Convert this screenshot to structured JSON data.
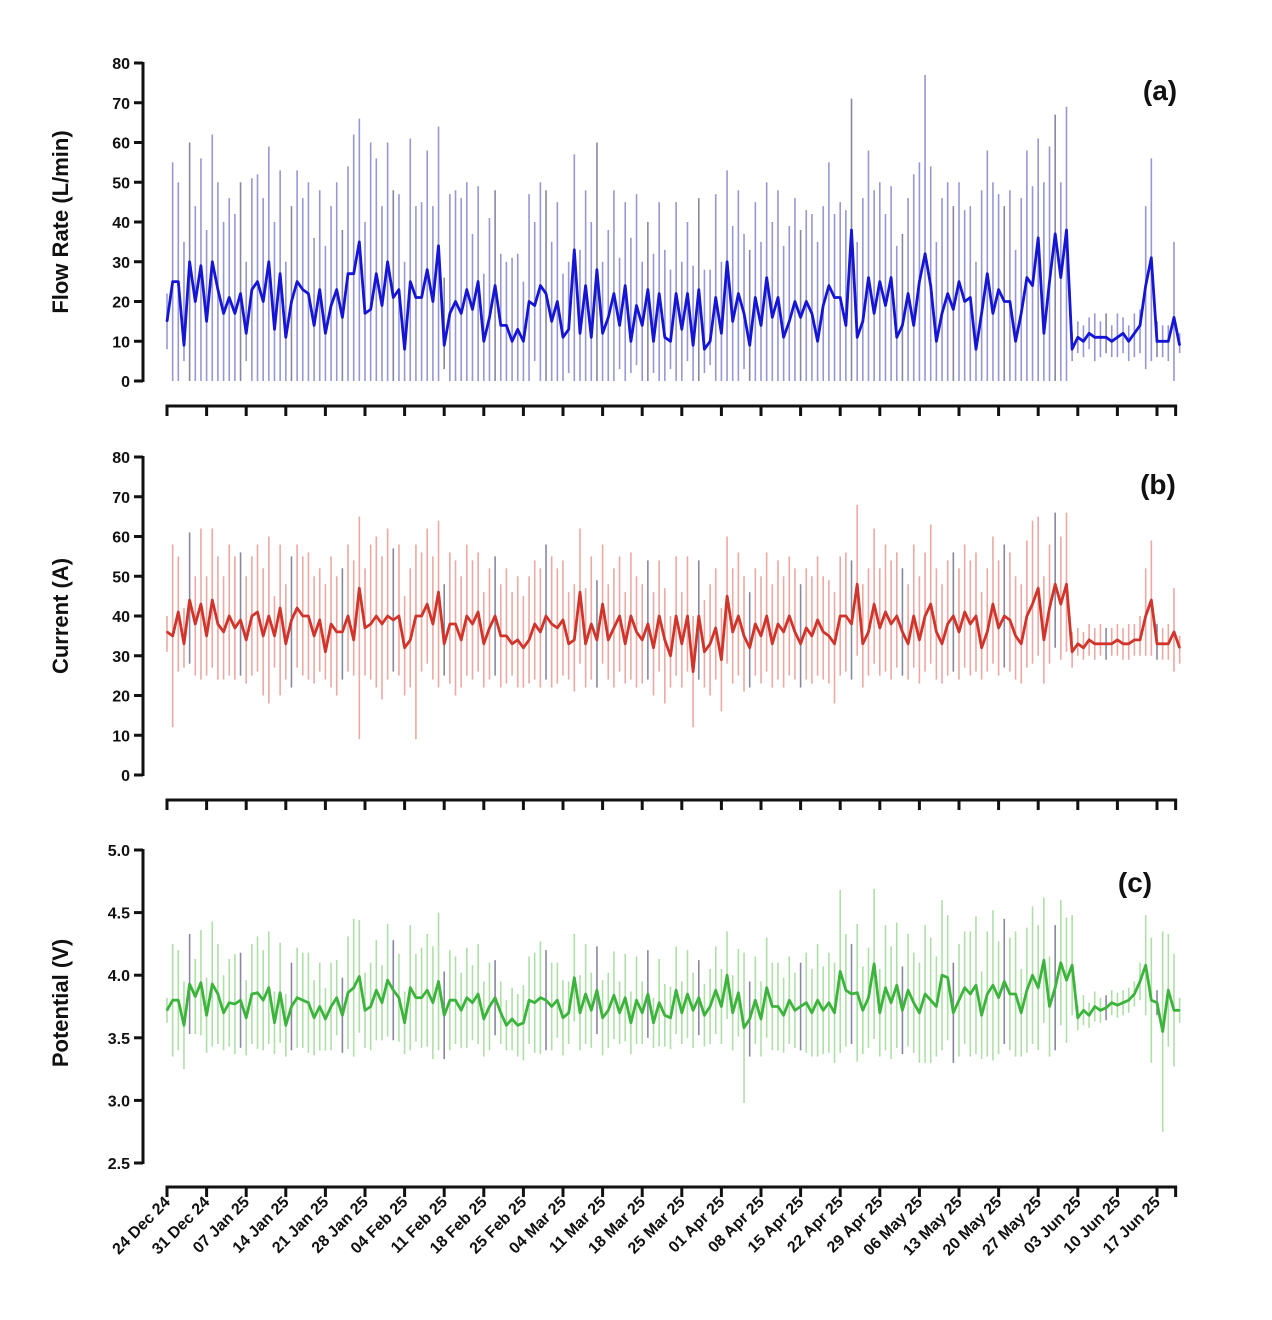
{
  "chart_data": [
    {
      "type": "line",
      "panel_label": "(a)",
      "ylabel": "Flow Rate (L/min)",
      "ylim": [
        0,
        80
      ],
      "yticks": [
        "0",
        "10",
        "20",
        "30",
        "40",
        "50",
        "60",
        "70",
        "80"
      ],
      "color": "#1515d6",
      "whisker_color": "#8c8cd0",
      "mean": [
        15,
        25,
        25,
        9,
        30,
        20,
        29,
        15,
        30,
        23,
        17,
        21,
        17,
        22,
        12,
        23,
        25,
        20,
        30,
        13,
        27,
        11,
        20,
        25,
        23,
        22,
        14,
        23,
        12,
        19,
        23,
        16,
        27,
        27,
        35,
        17,
        18,
        27,
        19,
        30,
        21,
        23,
        8,
        25,
        21,
        21,
        28,
        20,
        34,
        9,
        17,
        20,
        17,
        23,
        18,
        25,
        10,
        16,
        24,
        14,
        14,
        10,
        13,
        10,
        20,
        19,
        24,
        22,
        15,
        20,
        11,
        13,
        33,
        12,
        24,
        11,
        28,
        12,
        16,
        22,
        14,
        24,
        10,
        19,
        14,
        23,
        10,
        22,
        11,
        10,
        22,
        13,
        22,
        9,
        23,
        8,
        10,
        21,
        12,
        30,
        15,
        22,
        17,
        9,
        21,
        14,
        26,
        16,
        21,
        11,
        15,
        20,
        16,
        20,
        17,
        10,
        19,
        24,
        21,
        21,
        14,
        38,
        11,
        15,
        26,
        17,
        25,
        19,
        26,
        11,
        14,
        22,
        14,
        25,
        32,
        24,
        10,
        17,
        22,
        18,
        25,
        20,
        21,
        8,
        17,
        27,
        17,
        23,
        20,
        20,
        10,
        17,
        26,
        24,
        36,
        12,
        25,
        37,
        26,
        38,
        8,
        11,
        10,
        12,
        11,
        11,
        11,
        10,
        11,
        12,
        10,
        12,
        14,
        24,
        31,
        10,
        10,
        10,
        16,
        9
      ],
      "high": [
        22,
        55,
        50,
        35,
        60,
        44,
        56,
        38,
        62,
        50,
        40,
        46,
        42,
        50,
        30,
        51,
        52,
        46,
        59,
        40,
        53,
        30,
        44,
        53,
        46,
        50,
        36,
        48,
        34,
        44,
        50,
        38,
        54,
        62,
        66,
        40,
        60,
        56,
        44,
        60,
        48,
        47,
        30,
        61,
        44,
        45,
        58,
        44,
        64,
        26,
        47,
        48,
        46,
        50,
        37,
        49,
        27,
        41,
        48,
        32,
        30,
        31,
        32,
        25,
        47,
        40,
        50,
        48,
        35,
        45,
        27,
        30,
        57,
        33,
        48,
        40,
        60,
        30,
        38,
        48,
        31,
        45,
        36,
        47,
        30,
        40,
        32,
        45,
        33,
        28,
        45,
        30,
        40,
        29,
        46,
        28,
        28,
        47,
        30,
        53,
        39,
        48,
        37,
        33,
        45,
        35,
        50,
        40,
        48,
        34,
        39,
        46,
        38,
        43,
        42,
        35,
        44,
        55,
        42,
        45,
        43,
        71,
        35,
        46,
        58,
        48,
        50,
        42,
        49,
        34,
        37,
        46,
        52,
        55,
        77,
        54,
        35,
        46,
        50,
        44,
        50,
        43,
        44,
        30,
        48,
        58,
        50,
        47,
        44,
        48,
        33,
        46,
        58,
        49,
        61,
        50,
        59,
        67,
        50,
        69,
        12,
        15,
        14,
        16,
        17,
        15,
        17,
        14,
        17,
        16,
        14,
        17,
        18,
        44,
        56,
        15,
        14,
        14,
        35,
        12
      ],
      "low": [
        8,
        0,
        0,
        5,
        0,
        0,
        0,
        0,
        0,
        0,
        0,
        0,
        0,
        0,
        5,
        0,
        0,
        0,
        0,
        0,
        0,
        0,
        0,
        0,
        0,
        0,
        0,
        0,
        0,
        0,
        0,
        0,
        0,
        0,
        0,
        0,
        0,
        0,
        0,
        0,
        0,
        0,
        0,
        0,
        0,
        0,
        0,
        0,
        0,
        3,
        0,
        0,
        0,
        0,
        0,
        0,
        0,
        0,
        0,
        0,
        0,
        0,
        0,
        0,
        0,
        5,
        0,
        0,
        0,
        0,
        0,
        2,
        0,
        0,
        0,
        0,
        0,
        0,
        0,
        0,
        3,
        0,
        2,
        4,
        0,
        0,
        2,
        0,
        0,
        3,
        0,
        0,
        5,
        0,
        0,
        2,
        4,
        0,
        0,
        0,
        0,
        0,
        3,
        0,
        0,
        0,
        0,
        0,
        0,
        0,
        0,
        0,
        0,
        0,
        0,
        0,
        0,
        0,
        0,
        0,
        0,
        0,
        0,
        0,
        0,
        0,
        0,
        0,
        0,
        0,
        0,
        0,
        0,
        0,
        0,
        0,
        0,
        0,
        0,
        0,
        0,
        0,
        0,
        0,
        0,
        0,
        0,
        0,
        0,
        0,
        0,
        0,
        0,
        0,
        0,
        0,
        0,
        0,
        0,
        0,
        5,
        7,
        6,
        8,
        5,
        6,
        7,
        6,
        6,
        7,
        5,
        6,
        7,
        3,
        5,
        6,
        6,
        5,
        0,
        7
      ]
    },
    {
      "type": "line",
      "panel_label": "(b)",
      "ylabel": "Current (A)",
      "ylim": [
        0,
        80
      ],
      "yticks": [
        "0",
        "10",
        "20",
        "30",
        "40",
        "50",
        "60",
        "70",
        "80"
      ],
      "color": "#d0342a",
      "whisker_color": "#e8a098",
      "mean": [
        36,
        35,
        41,
        33,
        44,
        38,
        43,
        35,
        44,
        38,
        36,
        40,
        37,
        39,
        34,
        40,
        41,
        35,
        40,
        35,
        42,
        33,
        39,
        42,
        40,
        40,
        35,
        39,
        31,
        38,
        36,
        36,
        40,
        34,
        47,
        37,
        38,
        40,
        38,
        40,
        39,
        40,
        32,
        34,
        40,
        40,
        43,
        38,
        46,
        33,
        38,
        38,
        34,
        40,
        38,
        41,
        33,
        37,
        40,
        35,
        35,
        33,
        34,
        32,
        34,
        38,
        36,
        40,
        38,
        37,
        39,
        33,
        34,
        46,
        33,
        38,
        34,
        43,
        34,
        37,
        40,
        33,
        40,
        36,
        34,
        38,
        32,
        40,
        34,
        30,
        40,
        33,
        40,
        26,
        40,
        31,
        33,
        37,
        29,
        45,
        36,
        40,
        35,
        32,
        38,
        35,
        40,
        33,
        38,
        36,
        40,
        36,
        33,
        37,
        35,
        39,
        36,
        35,
        33,
        40,
        40,
        38,
        48,
        33,
        36,
        43,
        37,
        41,
        38,
        40,
        36,
        33,
        40,
        34,
        40,
        43,
        36,
        33,
        38,
        40,
        36,
        41,
        38,
        40,
        32,
        36,
        43,
        37,
        40,
        39,
        35,
        33,
        40,
        43,
        47,
        34,
        42,
        48,
        43,
        48,
        31,
        33,
        32,
        34,
        33,
        33,
        33,
        33,
        34,
        33,
        33,
        34,
        34,
        40,
        44,
        33,
        33,
        33,
        36,
        32
      ],
      "high": [
        40,
        58,
        55,
        42,
        61,
        50,
        62,
        50,
        62,
        55,
        50,
        58,
        55,
        56,
        50,
        55,
        58,
        52,
        60,
        45,
        58,
        48,
        55,
        58,
        55,
        56,
        50,
        52,
        48,
        55,
        50,
        52,
        58,
        54,
        65,
        52,
        58,
        60,
        55,
        62,
        57,
        58,
        45,
        52,
        58,
        56,
        62,
        55,
        64,
        48,
        56,
        54,
        50,
        58,
        54,
        56,
        46,
        52,
        55,
        48,
        52,
        46,
        50,
        45,
        50,
        54,
        52,
        58,
        55,
        52,
        54,
        46,
        48,
        62,
        47,
        55,
        49,
        58,
        48,
        52,
        55,
        46,
        56,
        50,
        48,
        54,
        46,
        54,
        47,
        40,
        55,
        46,
        55,
        40,
        54,
        44,
        48,
        52,
        42,
        60,
        52,
        56,
        50,
        46,
        52,
        50,
        56,
        48,
        54,
        50,
        55,
        52,
        48,
        52,
        50,
        55,
        50,
        49,
        46,
        55,
        56,
        54,
        68,
        48,
        52,
        62,
        52,
        58,
        54,
        56,
        52,
        48,
        58,
        50,
        56,
        63,
        52,
        48,
        54,
        56,
        52,
        58,
        54,
        56,
        46,
        52,
        60,
        54,
        58,
        56,
        50,
        48,
        59,
        64,
        65,
        50,
        58,
        66,
        60,
        66,
        36,
        37,
        36,
        38,
        37,
        38,
        37,
        37,
        38,
        37,
        38,
        38,
        40,
        52,
        59,
        38,
        37,
        38,
        47,
        35
      ],
      "low": [
        31,
        12,
        26,
        27,
        28,
        25,
        24,
        25,
        27,
        24,
        24,
        25,
        24,
        25,
        23,
        25,
        26,
        20,
        18,
        27,
        20,
        24,
        22,
        27,
        25,
        24,
        23,
        26,
        24,
        22,
        20,
        24,
        26,
        25,
        9,
        25,
        24,
        22,
        19,
        24,
        26,
        25,
        20,
        22,
        9,
        26,
        28,
        24,
        22,
        25,
        23,
        20,
        22,
        25,
        24,
        26,
        22,
        24,
        25,
        22,
        23,
        25,
        22,
        22,
        23,
        24,
        22,
        24,
        22,
        23,
        25,
        24,
        21,
        28,
        22,
        24,
        22,
        28,
        24,
        22,
        26,
        23,
        24,
        22,
        23,
        24,
        20,
        26,
        18,
        22,
        25,
        22,
        26,
        12,
        24,
        22,
        20,
        24,
        16,
        28,
        23,
        25,
        21,
        22,
        25,
        23,
        26,
        22,
        24,
        22,
        25,
        24,
        22,
        24,
        23,
        25,
        24,
        23,
        18,
        25,
        26,
        24,
        30,
        22,
        25,
        28,
        25,
        26,
        24,
        27,
        25,
        24,
        27,
        23,
        26,
        28,
        24,
        23,
        25,
        26,
        24,
        27,
        25,
        26,
        24,
        26,
        28,
        25,
        27,
        26,
        24,
        23,
        27,
        28,
        30,
        23,
        28,
        32,
        29,
        31,
        27,
        30,
        29,
        30,
        29,
        30,
        29,
        30,
        30,
        29,
        29,
        30,
        30,
        30,
        30,
        29,
        29,
        29,
        26,
        28
      ]
    },
    {
      "type": "line",
      "panel_label": "(c)",
      "ylabel": "Potential (V)",
      "ylim": [
        2.5,
        5.0
      ],
      "yticks": [
        "2.5",
        "3.0",
        "3.5",
        "4.0",
        "4.5",
        "5.0"
      ],
      "color": "#3cb43c",
      "whisker_color": "#a6dc9e",
      "mean": [
        3.72,
        3.8,
        3.8,
        3.6,
        3.93,
        3.83,
        3.94,
        3.68,
        3.93,
        3.85,
        3.7,
        3.78,
        3.77,
        3.8,
        3.66,
        3.85,
        3.86,
        3.8,
        3.9,
        3.62,
        3.86,
        3.6,
        3.75,
        3.82,
        3.8,
        3.78,
        3.66,
        3.75,
        3.65,
        3.75,
        3.82,
        3.68,
        3.86,
        3.9,
        3.99,
        3.72,
        3.75,
        3.88,
        3.78,
        3.96,
        3.88,
        3.82,
        3.62,
        3.9,
        3.82,
        3.82,
        3.88,
        3.78,
        3.95,
        3.68,
        3.8,
        3.8,
        3.72,
        3.82,
        3.78,
        3.85,
        3.65,
        3.75,
        3.82,
        3.7,
        3.6,
        3.65,
        3.6,
        3.62,
        3.8,
        3.78,
        3.82,
        3.8,
        3.75,
        3.8,
        3.66,
        3.7,
        3.98,
        3.7,
        3.85,
        3.72,
        3.88,
        3.66,
        3.72,
        3.84,
        3.7,
        3.82,
        3.62,
        3.8,
        3.7,
        3.85,
        3.62,
        3.78,
        3.68,
        3.66,
        3.88,
        3.7,
        3.85,
        3.72,
        3.82,
        3.68,
        3.75,
        3.88,
        3.75,
        4.0,
        3.7,
        3.86,
        3.58,
        3.65,
        3.8,
        3.65,
        3.9,
        3.75,
        3.75,
        3.68,
        3.8,
        3.72,
        3.75,
        3.78,
        3.7,
        3.8,
        3.72,
        3.78,
        3.7,
        4.03,
        3.88,
        3.85,
        3.86,
        3.72,
        3.82,
        4.09,
        3.7,
        3.9,
        3.78,
        3.92,
        3.72,
        3.88,
        3.78,
        3.7,
        3.85,
        3.8,
        3.75,
        4.0,
        3.98,
        3.7,
        3.8,
        3.9,
        3.85,
        3.92,
        3.68,
        3.85,
        3.92,
        3.82,
        3.95,
        3.85,
        3.85,
        3.7,
        3.88,
        4.0,
        3.9,
        4.12,
        3.75,
        3.9,
        4.1,
        3.96,
        4.08,
        3.66,
        3.72,
        3.68,
        3.75,
        3.72,
        3.74,
        3.78,
        3.76,
        3.78,
        3.8,
        3.85,
        3.95,
        4.08,
        3.8,
        3.78,
        3.55,
        3.88,
        3.72,
        3.72
      ],
      "err": [
        0.1,
        0.45,
        0.4,
        0.35,
        0.4,
        0.3,
        0.42,
        0.3,
        0.5,
        0.4,
        0.3,
        0.35,
        0.4,
        0.38,
        0.3,
        0.4,
        0.45,
        0.4,
        0.45,
        0.25,
        0.4,
        0.25,
        0.35,
        0.4,
        0.38,
        0.4,
        0.3,
        0.35,
        0.25,
        0.35,
        0.3,
        0.3,
        0.45,
        0.55,
        0.45,
        0.3,
        0.35,
        0.4,
        0.3,
        0.45,
        0.4,
        0.35,
        0.25,
        0.5,
        0.35,
        0.4,
        0.45,
        0.45,
        0.55,
        0.35,
        0.4,
        0.35,
        0.3,
        0.4,
        0.3,
        0.4,
        0.3,
        0.35,
        0.3,
        0.25,
        0.2,
        0.25,
        0.25,
        0.3,
        0.35,
        0.4,
        0.45,
        0.4,
        0.35,
        0.3,
        0.3,
        0.25,
        0.35,
        0.3,
        0.4,
        0.3,
        0.35,
        0.3,
        0.3,
        0.35,
        0.25,
        0.35,
        0.25,
        0.35,
        0.25,
        0.35,
        0.2,
        0.35,
        0.25,
        0.25,
        0.35,
        0.25,
        0.35,
        0.3,
        0.3,
        0.25,
        0.3,
        0.35,
        0.3,
        0.35,
        0.3,
        0.35,
        0.6,
        0.3,
        0.35,
        0.3,
        0.4,
        0.35,
        0.35,
        0.3,
        0.35,
        0.3,
        0.35,
        0.4,
        0.35,
        0.45,
        0.35,
        0.4,
        0.4,
        0.65,
        0.45,
        0.4,
        0.55,
        0.35,
        0.4,
        0.6,
        0.35,
        0.5,
        0.45,
        0.5,
        0.35,
        0.45,
        0.4,
        0.4,
        0.55,
        0.5,
        0.4,
        0.6,
        0.5,
        0.4,
        0.45,
        0.45,
        0.5,
        0.55,
        0.35,
        0.5,
        0.6,
        0.45,
        0.5,
        0.45,
        0.5,
        0.35,
        0.5,
        0.55,
        0.5,
        0.5,
        0.4,
        0.5,
        0.5,
        0.5,
        0.4,
        0.1,
        0.12,
        0.1,
        0.12,
        0.1,
        0.1,
        0.1,
        0.1,
        0.1,
        0.1,
        0.1,
        0.15,
        0.4,
        0.5,
        0.1,
        0.8,
        0.45,
        0.45,
        0.1
      ]
    }
  ],
  "x_axis": {
    "interval": "daily",
    "tick_labels": [
      "24 Dec 24",
      "31 Dec 24",
      "07 Jan 25",
      "14 Jan 25",
      "21 Jan 25",
      "28 Jan 25",
      "04 Feb 25",
      "11 Feb 25",
      "18 Feb 25",
      "25 Feb 25",
      "04 Mar 25",
      "11 Mar 25",
      "18 Mar 25",
      "25 Mar 25",
      "01 Apr 25",
      "08 Apr 25",
      "15 Apr 25",
      "22 Apr 25",
      "29 Apr 25",
      "06 May 25",
      "13 May 25",
      "20 May 25",
      "27 May 25",
      "03 Jun 25",
      "10 Jun 25",
      "17 Jun 25"
    ]
  }
}
